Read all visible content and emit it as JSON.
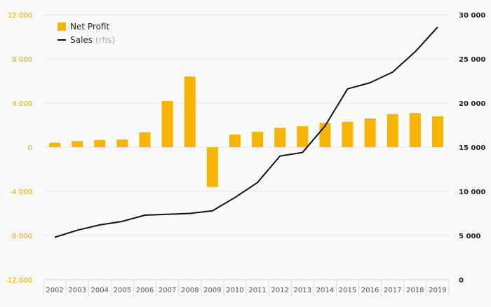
{
  "colors": {
    "bar": "#f7b500",
    "line": "#111111",
    "left_axis": "#f0a500",
    "grid": "#e6e6e6"
  },
  "chart_data": {
    "type": "bar",
    "categories": [
      "2002",
      "2003",
      "2004",
      "2005",
      "2006",
      "2007",
      "2008",
      "2009",
      "2010",
      "2011",
      "2012",
      "2013",
      "2014",
      "2015",
      "2016",
      "2017",
      "2018",
      "2019"
    ],
    "series": [
      {
        "name": "Net Profit",
        "axis": "left",
        "type": "bar",
        "values": [
          400,
          550,
          650,
          700,
          1350,
          4200,
          6400,
          -3600,
          1150,
          1400,
          1750,
          1900,
          2200,
          2300,
          2600,
          3000,
          3100,
          2800
        ]
      },
      {
        "name": "Sales",
        "suffix": "(rhs)",
        "axis": "right",
        "type": "line",
        "values": [
          4800,
          5600,
          6200,
          6600,
          7300,
          7400,
          7500,
          7800,
          9300,
          11000,
          14000,
          14400,
          17400,
          21600,
          22300,
          23500,
          25800,
          28600
        ]
      }
    ],
    "y_left": {
      "min": -12000,
      "max": 12000,
      "ticks": [
        -12000,
        -8000,
        -4000,
        0,
        4000,
        8000,
        12000
      ],
      "tick_labels": [
        "-12 000",
        "-8 000",
        "-4 000",
        "0",
        "4 000",
        "8 000",
        "12 000"
      ]
    },
    "y_right": {
      "min": 0,
      "max": 30000,
      "ticks": [
        0,
        5000,
        10000,
        15000,
        20000,
        25000,
        30000
      ],
      "tick_labels": [
        "0",
        "5 000",
        "10 000",
        "15 000",
        "20 000",
        "25 000",
        "30 000"
      ]
    },
    "legend_position": "top-left",
    "grid": true
  }
}
